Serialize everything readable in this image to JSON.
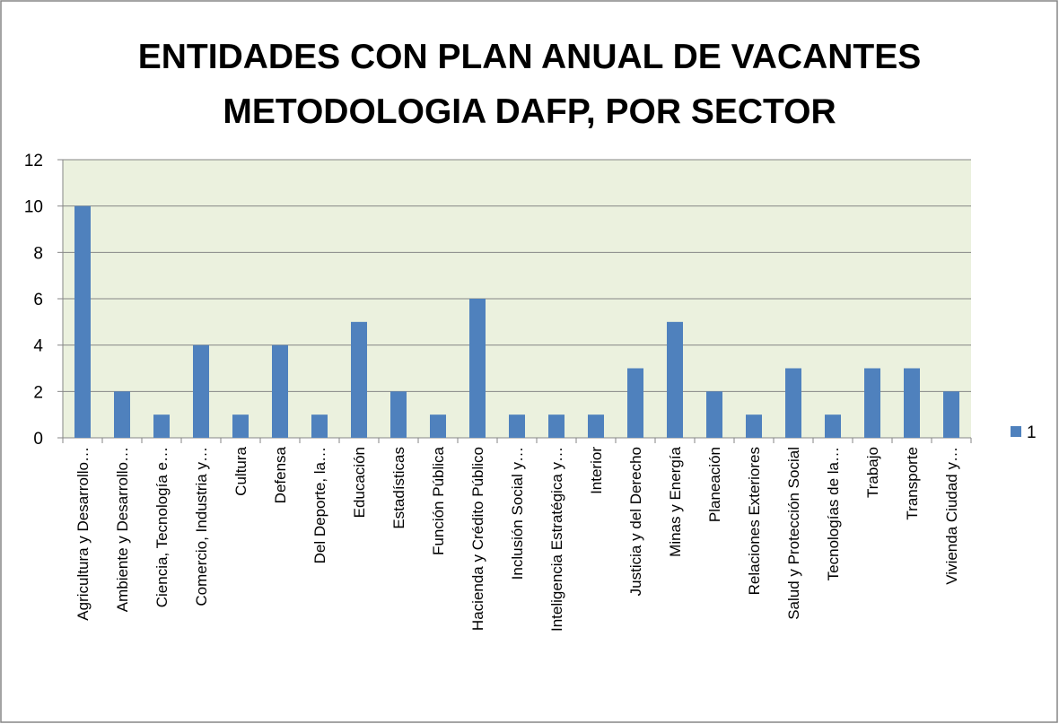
{
  "chart_data": {
    "type": "bar",
    "title": [
      "ENTIDADES CON PLAN ANUAL DE VACANTES",
      "METODOLOGIA DAFP, POR SECTOR"
    ],
    "categories": [
      "Agricultura y Desarrollo…",
      "Ambiente y Desarrollo…",
      "Ciencia, Tecnología e…",
      "Comercio, Industria y…",
      "Cultura",
      "Defensa",
      "Del Deporte, la…",
      "Educación",
      "Estadísticas",
      "Función Pública",
      "Hacienda y Crédito Público",
      "Inclusión Social y…",
      "Inteligencia Estratégica y…",
      "Interior",
      "Justicia y del Derecho",
      "Minas y Energía",
      "Planeación",
      "Relaciones Exteriores",
      "Salud y Protección Social",
      "Tecnologías de la…",
      "Trabajo",
      "Transporte",
      "Vivienda Ciudad y…"
    ],
    "series": [
      {
        "name": "1",
        "color": "#4f81bd",
        "values": [
          10,
          2,
          1,
          4,
          1,
          4,
          1,
          5,
          2,
          1,
          6,
          1,
          1,
          1,
          3,
          5,
          2,
          1,
          3,
          1,
          3,
          3,
          2
        ]
      }
    ],
    "ylim": [
      0,
      12
    ],
    "yticks": [
      0,
      2,
      4,
      6,
      8,
      10,
      12
    ],
    "grid": true,
    "legend": "right"
  }
}
